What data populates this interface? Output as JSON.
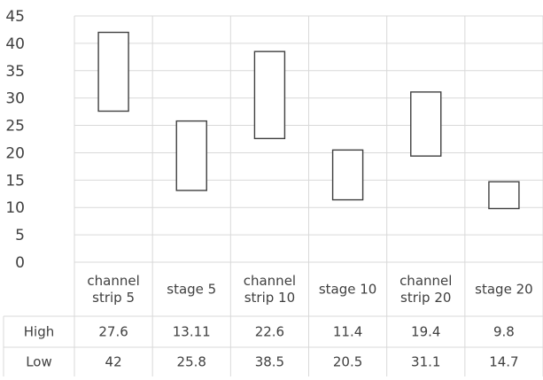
{
  "chart_data": {
    "type": "bar",
    "categories": [
      [
        "channel",
        "strip 5"
      ],
      [
        "stage 5"
      ],
      [
        "channel",
        "strip 10"
      ],
      [
        "stage 10"
      ],
      [
        "channel",
        "strip 20"
      ],
      [
        "stage 20"
      ]
    ],
    "series": [
      {
        "name": "High",
        "values": [
          27.6,
          13.11,
          22.6,
          11.4,
          19.4,
          9.8
        ],
        "labels": [
          "27.6",
          "13.11",
          "22.6",
          "11.4",
          "19.4",
          "9.8"
        ]
      },
      {
        "name": "Low",
        "values": [
          42,
          25.8,
          38.5,
          20.5,
          31.1,
          14.7
        ],
        "labels": [
          "42",
          "25.8",
          "38.5",
          "20.5",
          "31.1",
          "14.7"
        ]
      }
    ],
    "ylim": [
      0,
      45
    ],
    "yticks": [
      "0",
      "5",
      "10",
      "15",
      "20",
      "25",
      "30",
      "35",
      "40",
      "45"
    ],
    "grid": true,
    "legend": "data-table"
  }
}
